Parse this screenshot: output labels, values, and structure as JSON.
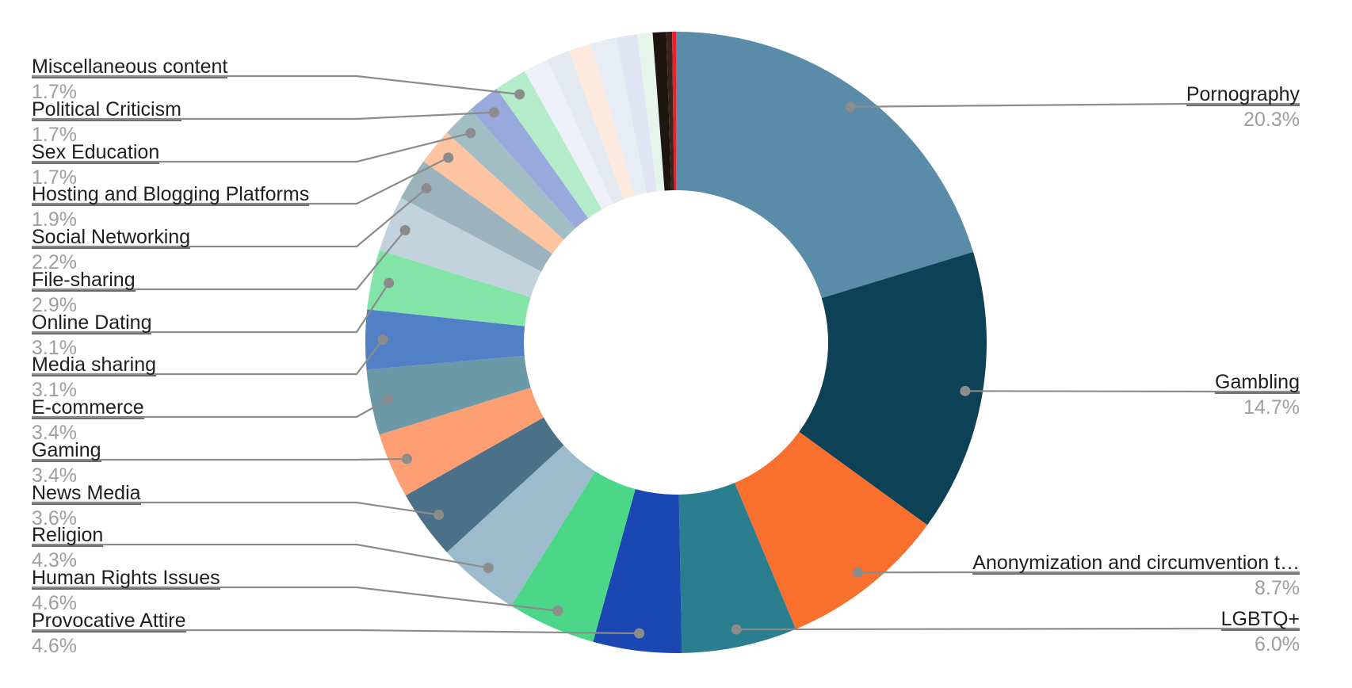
{
  "chart_data": {
    "type": "donut",
    "title": "",
    "legend": "none",
    "grid": false,
    "inner_radius_ratio": 0.49,
    "start_angle_deg": 0,
    "direction": "clockwise",
    "label_text_color": "#1f1f1f",
    "percent_text_color": "#9e9e9e",
    "leader_line_color": "#8c8c8c",
    "underline_color": "#6e6e6e",
    "slices": [
      {
        "label": "Pornography",
        "value": 20.3,
        "arc": 20.3,
        "color": "#5a8caa",
        "side": "right"
      },
      {
        "label": "Gambling",
        "value": 14.7,
        "arc": 14.7,
        "color": "#0d4156",
        "side": "right"
      },
      {
        "label": "Anonymization and circumvention t…",
        "value": 8.7,
        "arc": 8.7,
        "color": "#f9702e",
        "side": "right"
      },
      {
        "label": "LGBTQ+",
        "value": 6.0,
        "arc": 6.0,
        "color": "#2b7e8e",
        "side": "right"
      },
      {
        "label": "Provocative Attire",
        "value": 4.6,
        "arc": 4.6,
        "color": "#1a47b2",
        "side": "left"
      },
      {
        "label": "Human Rights Issues",
        "value": 4.6,
        "arc": 4.6,
        "color": "#4bd688",
        "side": "left"
      },
      {
        "label": "Religion",
        "value": 4.3,
        "arc": 4.3,
        "color": "#9cbcce",
        "side": "left"
      },
      {
        "label": "News Media",
        "value": 3.6,
        "arc": 3.6,
        "color": "#4a7187",
        "side": "left"
      },
      {
        "label": "Gaming",
        "value": 3.4,
        "arc": 3.4,
        "color": "#fe9e73",
        "side": "left"
      },
      {
        "label": "E-commerce",
        "value": 3.4,
        "arc": 3.4,
        "color": "#6c99a8",
        "side": "left"
      },
      {
        "label": "Media sharing",
        "value": 3.1,
        "arc": 3.1,
        "color": "#5180c6",
        "side": "left"
      },
      {
        "label": "Online Dating",
        "value": 3.1,
        "arc": 3.1,
        "color": "#83e4a8",
        "side": "left"
      },
      {
        "label": "File-sharing",
        "value": 2.9,
        "arc": 2.9,
        "color": "#c3d3dd",
        "side": "left"
      },
      {
        "label": "Social Networking",
        "value": 2.2,
        "arc": 2.2,
        "color": "#9cb3be",
        "side": "left"
      },
      {
        "label": "Hosting and Blogging Platforms",
        "value": 1.9,
        "arc": 1.9,
        "color": "#fec3a1",
        "side": "left"
      },
      {
        "label": "Sex Education",
        "value": 1.7,
        "arc": 1.7,
        "color": "#a2bec5",
        "side": "left"
      },
      {
        "label": "Political Criticism",
        "value": 1.7,
        "arc": 1.7,
        "color": "#98a9db",
        "side": "left"
      },
      {
        "label": "Miscellaneous content",
        "value": 1.7,
        "arc": 1.7,
        "color": "#b4ecca",
        "side": "left"
      },
      {
        "label": "",
        "value": null,
        "arc": 1.3,
        "color": "#edf1f7",
        "side": "none"
      },
      {
        "label": "",
        "value": null,
        "arc": 1.2,
        "color": "#e3e9ef",
        "side": "none"
      },
      {
        "label": "",
        "value": null,
        "arc": 1.2,
        "color": "#fdeade",
        "side": "none"
      },
      {
        "label": "",
        "value": null,
        "arc": 1.3,
        "color": "#e8edf4",
        "side": "none"
      },
      {
        "label": "",
        "value": null,
        "arc": 1.1,
        "color": "#e1e5f3",
        "side": "none"
      },
      {
        "label": "",
        "value": null,
        "arc": 0.8,
        "color": "#e5f5eb",
        "side": "none"
      },
      {
        "label": "",
        "value": null,
        "arc": 0.7,
        "color": "#1e1410",
        "side": "none"
      },
      {
        "label": "",
        "value": null,
        "arc": 0.3,
        "color": "#38251b",
        "side": "none"
      },
      {
        "label": "",
        "value": null,
        "arc": 0.2,
        "color": "#e9212b",
        "side": "none"
      }
    ]
  }
}
